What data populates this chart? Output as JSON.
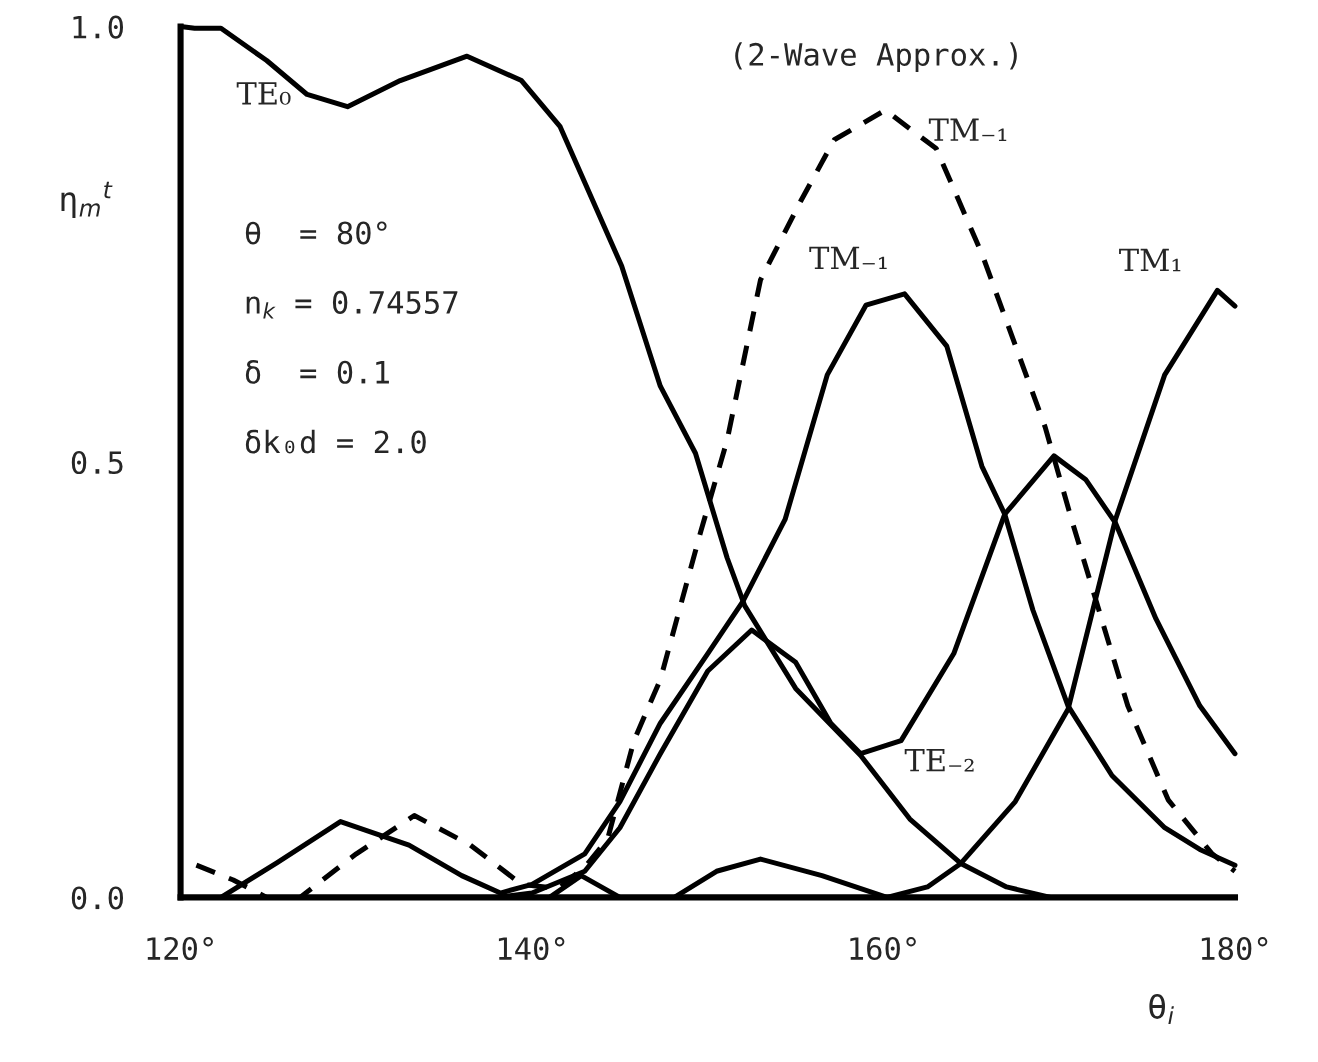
{
  "chart_data": {
    "type": "line",
    "xlabel": "θ$_{i}$",
    "ylabel": "η$_{m}$$^{t}$",
    "annotations": [
      "(2-Wave Approx.)",
      "θ  = 80°",
      "n$_{k}$ = 0.74557",
      "δ  = 0.1",
      "δk₀d = 2.0"
    ],
    "xlim": [
      120,
      180
    ],
    "ylim": [
      0,
      1.0
    ],
    "xticks": [
      {
        "value": 120,
        "label": "120°"
      },
      {
        "value": 140,
        "label": "140°"
      },
      {
        "value": 160,
        "label": "160°"
      },
      {
        "value": 180,
        "label": "180°"
      }
    ],
    "yticks": [
      {
        "value": 0,
        "label": "0.0"
      },
      {
        "value": 0.5,
        "label": "0.5"
      },
      {
        "value": 1.0,
        "label": "1.0"
      }
    ],
    "grid": false,
    "legend": false,
    "marker": "none",
    "series": [
      {
        "name": "TE₀",
        "color": "#000000",
        "line_style": "solid",
        "x": [
          120,
          120.8,
          122.3,
          124.9,
          127.2,
          129.5,
          132.5,
          136.3,
          139.4,
          141.6,
          145.1,
          147.3,
          149.3,
          151.1,
          152.1,
          155.0,
          158.7,
          161.5,
          164.4,
          167.0,
          169.5,
          172,
          176,
          180
        ],
        "values": [
          1.0,
          0.998,
          0.998,
          0.961,
          0.922,
          0.908,
          0.938,
          0.966,
          0.938,
          0.885,
          0.725,
          0.587,
          0.51,
          0.39,
          0.335,
          0.24,
          0.163,
          0.09,
          0.039,
          0.012,
          0.0,
          0.0,
          0.0,
          0.0
        ]
      },
      {
        "name": "TM₋₁",
        "color": "#000000",
        "line_style": "dashed",
        "x": [
          120.9,
          123,
          124.9,
          126.8,
          130,
          133.3,
          136.5,
          139.4,
          141.5,
          143.1,
          144.3,
          145.8,
          147.3,
          149.6,
          151.1,
          153.0,
          155.3,
          157.2,
          160.1,
          163,
          165.6,
          169.2,
          170.7,
          173.9,
          176.2,
          178.7,
          180
        ],
        "values": [
          0.037,
          0.02,
          0.0,
          0.0,
          0.05,
          0.094,
          0.06,
          0.015,
          0.01,
          0.037,
          0.067,
          0.18,
          0.25,
          0.42,
          0.525,
          0.709,
          0.8,
          0.87,
          0.904,
          0.86,
          0.739,
          0.54,
          0.434,
          0.22,
          0.112,
          0.05,
          0.03
        ]
      },
      {
        "name": "TM₋₁",
        "color": "#000000",
        "line_style": "solid",
        "x": [
          122.3,
          125.5,
          129.1,
          133,
          136,
          138.2,
          140,
          143,
          145,
          147.3,
          150,
          152,
          154.4,
          156.8,
          159,
          161.2,
          163.6,
          165.6,
          166.9,
          168.5,
          170.5,
          173,
          176,
          178,
          180
        ],
        "values": [
          0.0,
          0.04,
          0.087,
          0.06,
          0.025,
          0.005,
          0.015,
          0.05,
          0.11,
          0.2,
          0.28,
          0.34,
          0.434,
          0.6,
          0.68,
          0.693,
          0.633,
          0.495,
          0.44,
          0.33,
          0.22,
          0.14,
          0.08,
          0.055,
          0.037
        ]
      },
      {
        "name": "TE₋₂",
        "color": "#000000",
        "line_style": "solid",
        "x": [
          120,
          130,
          138,
          140,
          143,
          145,
          147.3,
          150,
          152.5,
          155,
          157,
          158.7,
          161,
          164,
          166.9,
          169.7,
          171.5,
          173.2,
          175.5,
          178,
          180
        ],
        "values": [
          0.0,
          0.0,
          0.0,
          0.005,
          0.03,
          0.08,
          0.165,
          0.26,
          0.307,
          0.27,
          0.2,
          0.165,
          0.18,
          0.28,
          0.44,
          0.507,
          0.48,
          0.43,
          0.32,
          0.22,
          0.165
        ]
      },
      {
        "name": "TM₁",
        "color": "#000000",
        "line_style": "solid",
        "x": [
          120,
          141,
          142.8,
          145,
          148.1,
          150.5,
          153.0,
          156.5,
          160.2,
          162.5,
          164.4,
          167.5,
          170.5,
          173.2,
          176,
          179.0,
          180
        ],
        "values": [
          0.0,
          0.0,
          0.025,
          0.0,
          0.0,
          0.03,
          0.044,
          0.025,
          0.0,
          0.012,
          0.039,
          0.11,
          0.216,
          0.434,
          0.6,
          0.697,
          0.679
        ]
      }
    ]
  }
}
